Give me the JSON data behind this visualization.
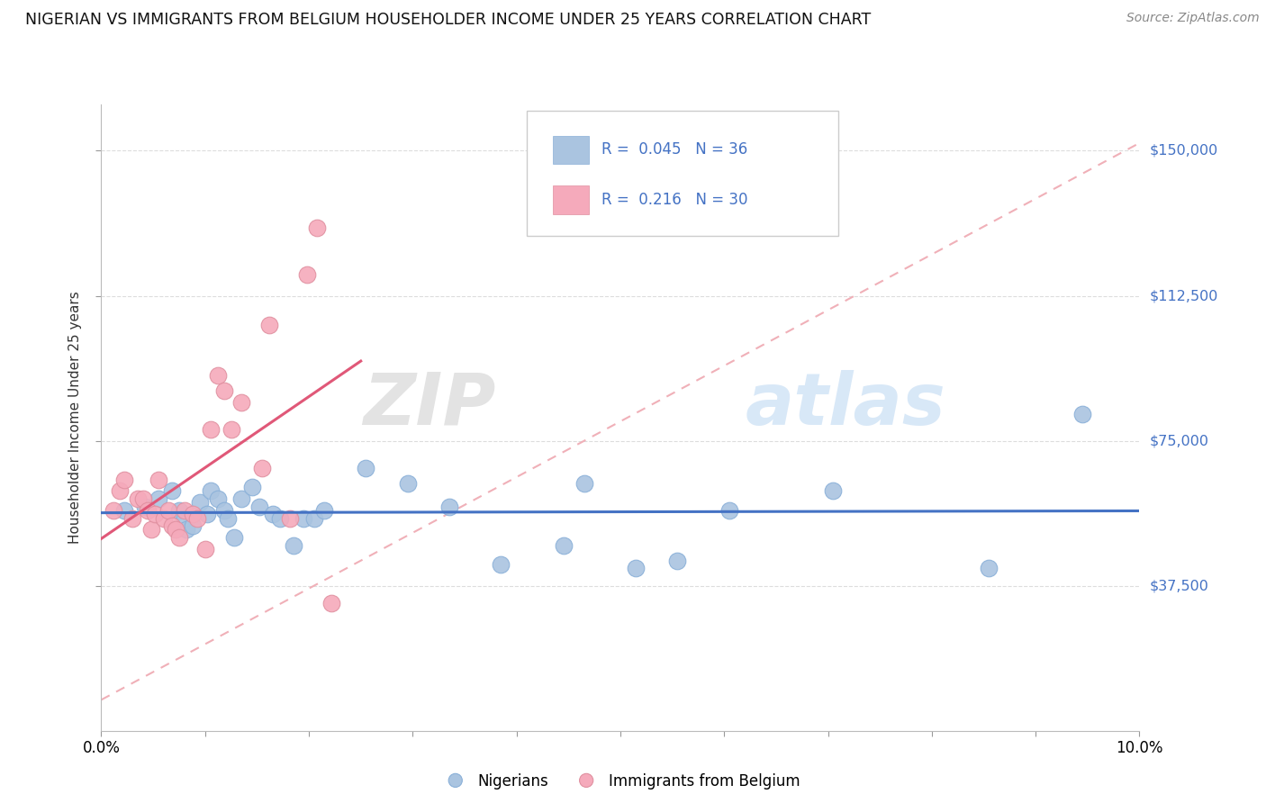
{
  "title": "NIGERIAN VS IMMIGRANTS FROM BELGIUM HOUSEHOLDER INCOME UNDER 25 YEARS CORRELATION CHART",
  "source": "Source: ZipAtlas.com",
  "ylabel": "Householder Income Under 25 years",
  "ytick_labels": [
    "$37,500",
    "$75,000",
    "$112,500",
    "$150,000"
  ],
  "ytick_values": [
    37500,
    75000,
    112500,
    150000
  ],
  "xmin": 0.0,
  "xmax": 10.0,
  "ymin": 0,
  "ymax": 162000,
  "legend_r1": "R =  0.045",
  "legend_n1": "N = 36",
  "legend_r2": "R =  0.216",
  "legend_n2": "N = 30",
  "legend_label1": "Nigerians",
  "legend_label2": "Immigrants from Belgium",
  "watermark_zip": "ZIP",
  "watermark_atlas": "atlas",
  "blue_color": "#aac4e0",
  "pink_color": "#f5aabb",
  "blue_line_color": "#4472c4",
  "pink_line_color": "#e05878",
  "diag_line_color": "#f0b0b8",
  "nigerian_x": [
    0.22,
    0.42,
    0.55,
    0.68,
    0.75,
    0.8,
    0.82,
    0.88,
    0.95,
    1.02,
    1.05,
    1.12,
    1.18,
    1.22,
    1.28,
    1.35,
    1.45,
    1.52,
    1.65,
    1.72,
    1.85,
    1.95,
    2.05,
    2.15,
    2.55,
    2.95,
    3.35,
    3.85,
    4.45,
    4.65,
    5.15,
    5.55,
    6.05,
    7.05,
    8.55,
    9.45
  ],
  "nigerian_y": [
    57000,
    58000,
    60000,
    62000,
    57000,
    55000,
    52000,
    53000,
    59000,
    56000,
    62000,
    60000,
    57000,
    55000,
    50000,
    60000,
    63000,
    58000,
    56000,
    55000,
    48000,
    55000,
    55000,
    57000,
    68000,
    64000,
    58000,
    43000,
    48000,
    64000,
    42000,
    44000,
    57000,
    62000,
    42000,
    82000
  ],
  "belgium_x": [
    0.12,
    0.18,
    0.22,
    0.3,
    0.35,
    0.4,
    0.45,
    0.48,
    0.52,
    0.55,
    0.6,
    0.65,
    0.68,
    0.72,
    0.75,
    0.8,
    0.88,
    0.92,
    1.0,
    1.05,
    1.12,
    1.18,
    1.25,
    1.35,
    1.55,
    1.62,
    1.82,
    1.98,
    2.08,
    2.22
  ],
  "belgium_y": [
    57000,
    62000,
    65000,
    55000,
    60000,
    60000,
    57000,
    52000,
    56000,
    65000,
    55000,
    57000,
    53000,
    52000,
    50000,
    57000,
    56000,
    55000,
    47000,
    78000,
    92000,
    88000,
    78000,
    85000,
    68000,
    105000,
    55000,
    118000,
    130000,
    33000
  ]
}
